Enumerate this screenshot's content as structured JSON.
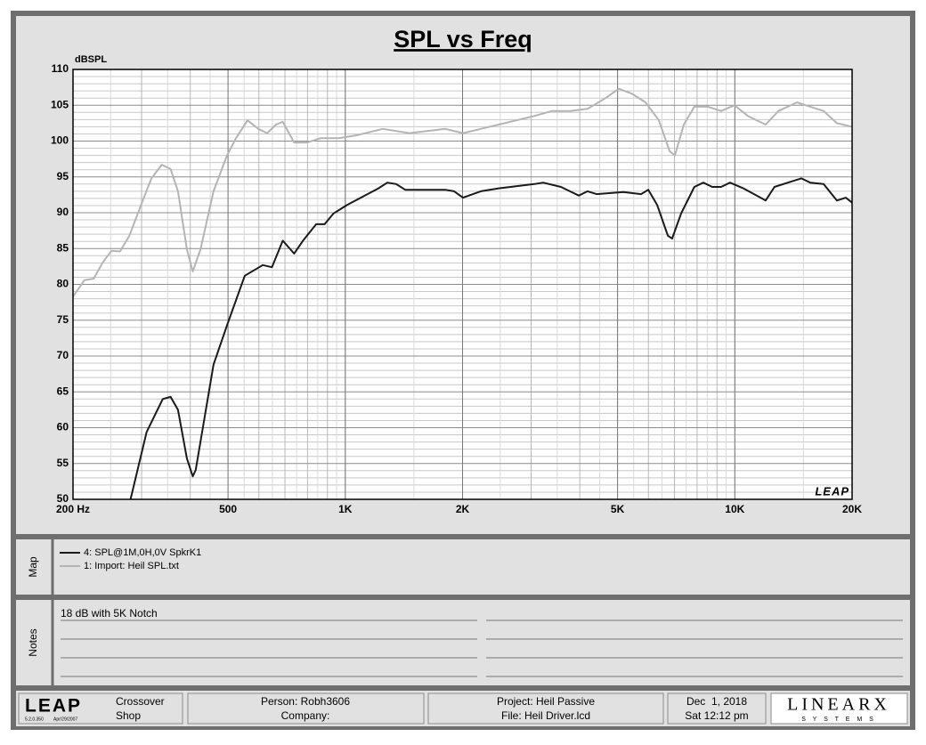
{
  "chart_data": {
    "type": "line",
    "title": "SPL vs Freq",
    "y_label": "dBSPL",
    "watermark": "LEAP",
    "xscale": "log",
    "grid": true,
    "xlim": [
      200,
      20000
    ],
    "ylim": [
      50,
      110
    ],
    "xticks": [
      {
        "value": 200,
        "label": "200 Hz"
      },
      500,
      {
        "value": 1000,
        "label": "1K"
      },
      {
        "value": 2000,
        "label": "2K"
      },
      {
        "value": 5000,
        "label": "5K"
      },
      {
        "value": 10000,
        "label": "10K"
      },
      {
        "value": 20000,
        "label": "20K"
      }
    ],
    "yticks": [
      50,
      55,
      60,
      65,
      70,
      75,
      80,
      85,
      90,
      95,
      100,
      105,
      110
    ],
    "series": [
      {
        "name": "4: SPL@1M,0H,0V SpkrK1",
        "color": "#1a1a1a",
        "x": [
          281,
          309,
          340,
          356,
          372,
          392,
          406,
          413,
          459,
          497,
          552,
          614,
          648,
          691,
          739,
          779,
          842,
          885,
          933,
          1012,
          1122,
          1216,
          1282,
          1351,
          1425,
          1806,
          1902,
          2005,
          2228,
          2475,
          3055,
          3220,
          3577,
          3975,
          4188,
          4415,
          5170,
          5746,
          5994,
          6316,
          6730,
          6905,
          7280,
          7870,
          8300,
          8750,
          9220,
          9720,
          10520,
          11380,
          12000,
          12640,
          13680,
          14820,
          15620,
          16900,
          18280,
          19280,
          20000
        ],
        "values": [
          50.0,
          59.4,
          64.0,
          64.3,
          62.5,
          55.7,
          53.2,
          54.1,
          68.8,
          74.3,
          81.2,
          82.7,
          82.4,
          86.1,
          84.3,
          86.1,
          88.4,
          88.4,
          89.9,
          91.1,
          92.4,
          93.4,
          94.2,
          94.0,
          93.2,
          93.2,
          93.0,
          92.1,
          93.0,
          93.4,
          94.0,
          94.2,
          93.6,
          92.4,
          93.0,
          92.6,
          92.9,
          92.6,
          93.2,
          91.1,
          86.8,
          86.4,
          89.9,
          93.6,
          94.2,
          93.6,
          93.6,
          94.2,
          93.4,
          92.4,
          91.7,
          93.6,
          94.2,
          94.8,
          94.2,
          94.0,
          91.7,
          92.1,
          91.4
        ]
      },
      {
        "name": "1: Import: Heil SPL.txt",
        "color": "#b4b4b4",
        "x": [
          200,
          214,
          226,
          238,
          251,
          264,
          279,
          302,
          318,
          338,
          356,
          372,
          392,
          406,
          425,
          459,
          497,
          524,
          561,
          598,
          630,
          664,
          691,
          739,
          798,
          864,
          960,
          1066,
          1249,
          1462,
          1806,
          2005,
          2228,
          2475,
          3055,
          3394,
          3773,
          4188,
          4656,
          5036,
          5450,
          5898,
          6383,
          6800,
          7019,
          7396,
          7870,
          8530,
          9220,
          9980,
          10806,
          12000,
          12940,
          14430,
          15620,
          16900,
          18280,
          20000
        ],
        "values": [
          78.3,
          80.6,
          80.8,
          83.0,
          84.7,
          84.6,
          86.8,
          91.7,
          94.8,
          96.7,
          96.1,
          93.0,
          84.9,
          81.8,
          84.9,
          93.0,
          98.0,
          100.4,
          102.9,
          101.7,
          101.1,
          102.3,
          102.7,
          99.8,
          99.8,
          100.4,
          100.4,
          100.8,
          101.7,
          101.1,
          101.7,
          101.1,
          101.7,
          102.3,
          103.5,
          104.2,
          104.2,
          104.5,
          106.0,
          107.3,
          106.6,
          105.4,
          102.9,
          98.6,
          98.0,
          102.3,
          104.8,
          104.8,
          104.2,
          105.0,
          103.5,
          102.3,
          104.2,
          105.4,
          104.8,
          104.2,
          102.5,
          102.0
        ]
      }
    ]
  },
  "map": {
    "label": "Map"
  },
  "notes": {
    "label": "Notes",
    "lines": [
      "18 dB with 5K Notch"
    ]
  },
  "footer": {
    "logo": "LEAP",
    "version": "5.2.0.350",
    "version_date": "Apr/29/2007",
    "module": [
      "Crossover",
      "Shop"
    ],
    "person": "Person: Robh3606",
    "company": "Company:",
    "project": "Project: Heil Passive",
    "file": "File: Heil Driver.lcd",
    "date": "Dec  1, 2018",
    "time": "Sat 12:12 pm",
    "brand": "LINEARX",
    "brand_sub": "S Y S T E M S"
  }
}
